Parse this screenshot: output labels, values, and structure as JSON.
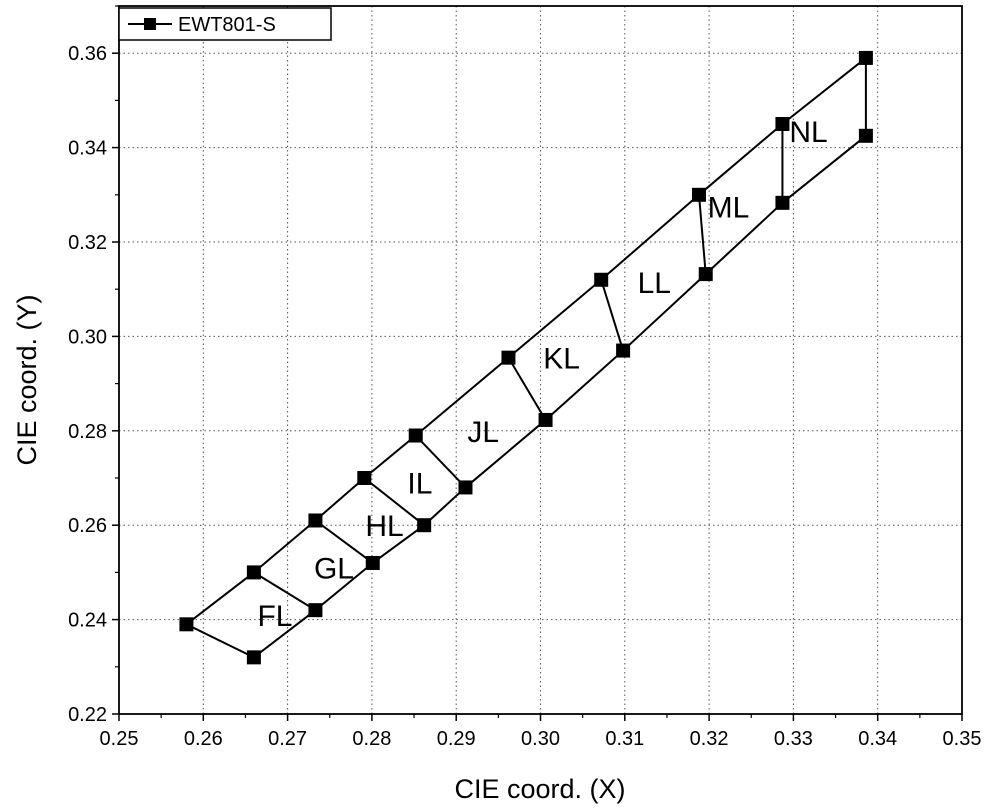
{
  "chart_data": {
    "type": "scatter",
    "xlabel": "CIE coord. (X)",
    "ylabel": "CIE coord. (Y)",
    "xlim": [
      0.25,
      0.35
    ],
    "ylim": [
      0.22,
      0.37
    ],
    "xticks": [
      "0.25",
      "0.26",
      "0.27",
      "0.28",
      "0.29",
      "0.30",
      "0.31",
      "0.32",
      "0.33",
      "0.34",
      "0.35"
    ],
    "yticks": [
      "0.22",
      "0.24",
      "0.26",
      "0.28",
      "0.30",
      "0.32",
      "0.34",
      "0.36"
    ],
    "grid": true,
    "legend": {
      "placement": "top-left",
      "entries": [
        "EWT801-S"
      ]
    },
    "series": [
      {
        "name": "EWT801-S",
        "marker": "square",
        "color": "#000000",
        "points": [
          {
            "id": "p1",
            "x": 0.258,
            "y": 0.239
          },
          {
            "id": "p2",
            "x": 0.266,
            "y": 0.25
          },
          {
            "id": "p3",
            "x": 0.266,
            "y": 0.232
          },
          {
            "id": "p4",
            "x": 0.2733,
            "y": 0.261
          },
          {
            "id": "p5",
            "x": 0.2733,
            "y": 0.242
          },
          {
            "id": "p6",
            "x": 0.2791,
            "y": 0.27
          },
          {
            "id": "p7",
            "x": 0.2801,
            "y": 0.252
          },
          {
            "id": "p8",
            "x": 0.2852,
            "y": 0.279
          },
          {
            "id": "p9",
            "x": 0.2862,
            "y": 0.26
          },
          {
            "id": "p10",
            "x": 0.2911,
            "y": 0.268
          },
          {
            "id": "p11",
            "x": 0.2962,
            "y": 0.2955
          },
          {
            "id": "p12",
            "x": 0.3006,
            "y": 0.2823
          },
          {
            "id": "p13",
            "x": 0.3072,
            "y": 0.312
          },
          {
            "id": "p14",
            "x": 0.3098,
            "y": 0.297
          },
          {
            "id": "p15",
            "x": 0.3188,
            "y": 0.33
          },
          {
            "id": "p16",
            "x": 0.3196,
            "y": 0.3132
          },
          {
            "id": "p17",
            "x": 0.3287,
            "y": 0.345
          },
          {
            "id": "p18",
            "x": 0.3287,
            "y": 0.3283
          },
          {
            "id": "p19",
            "x": 0.3386,
            "y": 0.359
          },
          {
            "id": "p20",
            "x": 0.3386,
            "y": 0.3425
          }
        ]
      }
    ],
    "segments": [
      [
        "p1",
        "p2"
      ],
      [
        "p2",
        "p4"
      ],
      [
        "p4",
        "p6"
      ],
      [
        "p6",
        "p8"
      ],
      [
        "p8",
        "p11"
      ],
      [
        "p11",
        "p13"
      ],
      [
        "p13",
        "p15"
      ],
      [
        "p15",
        "p17"
      ],
      [
        "p17",
        "p19"
      ],
      [
        "p1",
        "p3"
      ],
      [
        "p3",
        "p5"
      ],
      [
        "p5",
        "p7"
      ],
      [
        "p7",
        "p9"
      ],
      [
        "p9",
        "p10"
      ],
      [
        "p10",
        "p12"
      ],
      [
        "p12",
        "p14"
      ],
      [
        "p14",
        "p16"
      ],
      [
        "p16",
        "p18"
      ],
      [
        "p18",
        "p20"
      ],
      [
        "p2",
        "p5"
      ],
      [
        "p4",
        "p7"
      ],
      [
        "p6",
        "p9"
      ],
      [
        "p8",
        "p10"
      ],
      [
        "p11",
        "p12"
      ],
      [
        "p13",
        "p14"
      ],
      [
        "p15",
        "p16"
      ],
      [
        "p17",
        "p18"
      ],
      [
        "p19",
        "p20"
      ]
    ],
    "annotations": [
      {
        "text": "FL",
        "x": 0.2685,
        "y": 0.241
      },
      {
        "text": "GL",
        "x": 0.2755,
        "y": 0.251
      },
      {
        "text": "HL",
        "x": 0.2815,
        "y": 0.26
      },
      {
        "text": "IL",
        "x": 0.2857,
        "y": 0.269
      },
      {
        "text": "JL",
        "x": 0.2932,
        "y": 0.28
      },
      {
        "text": "KL",
        "x": 0.3025,
        "y": 0.2955
      },
      {
        "text": "LL",
        "x": 0.3135,
        "y": 0.3115
      },
      {
        "text": "ML",
        "x": 0.3223,
        "y": 0.3275
      },
      {
        "text": "NL",
        "x": 0.3318,
        "y": 0.3435
      }
    ]
  }
}
